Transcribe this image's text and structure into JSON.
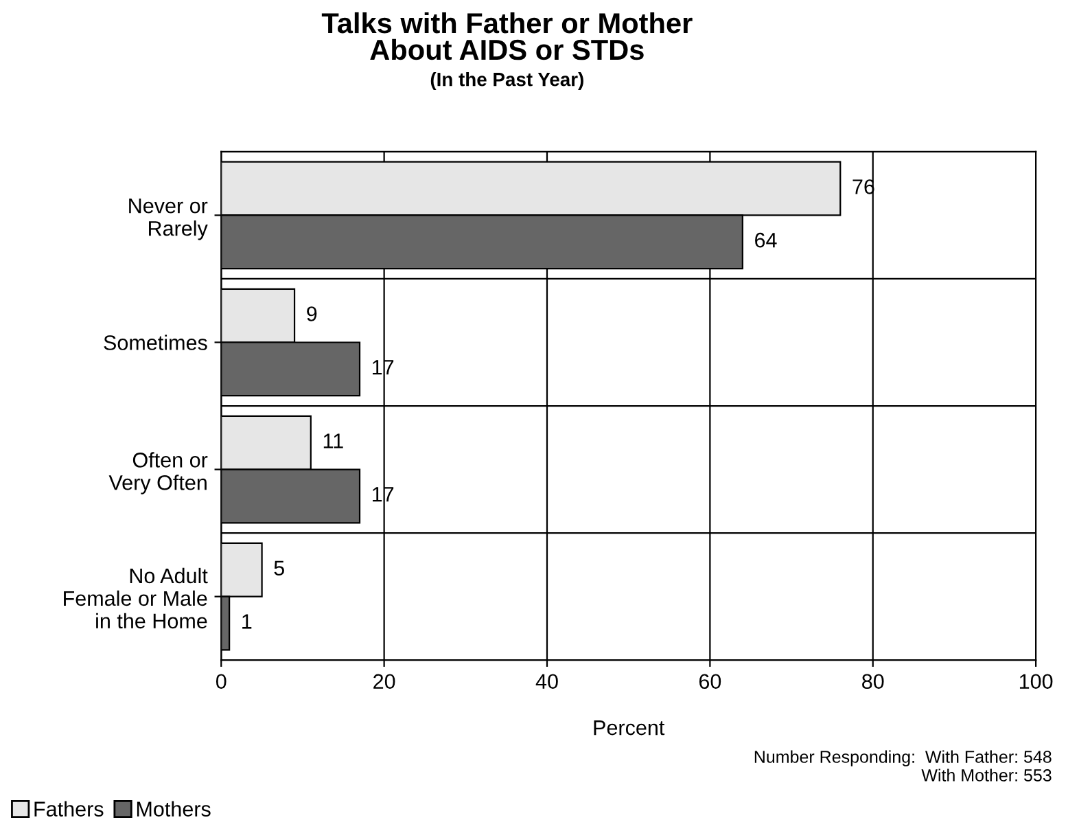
{
  "chart_data": {
    "type": "bar",
    "orientation": "horizontal",
    "title": "Talks with Father or Mother\nAbout AIDS or STDs",
    "subtitle": "(In the Past Year)",
    "xlabel": "Percent",
    "categories": [
      "Never or\nRarely",
      "Sometimes",
      "Often or\nVery Often",
      "No Adult\nFemale or Male\nin the Home"
    ],
    "series": [
      {
        "name": "Fathers",
        "color": "#e6e6e6",
        "values": [
          76,
          9,
          11,
          5
        ]
      },
      {
        "name": "Mothers",
        "color": "#666666",
        "values": [
          64,
          17,
          17,
          1
        ]
      }
    ],
    "xlim": [
      0,
      100
    ],
    "xticks": [
      0,
      20,
      40,
      60,
      80,
      100
    ],
    "grid": true,
    "legend": "bottom left",
    "data_labels": true,
    "annotations": [
      "Number Responding:  With Father: 548\nWith Mother: 553"
    ]
  }
}
